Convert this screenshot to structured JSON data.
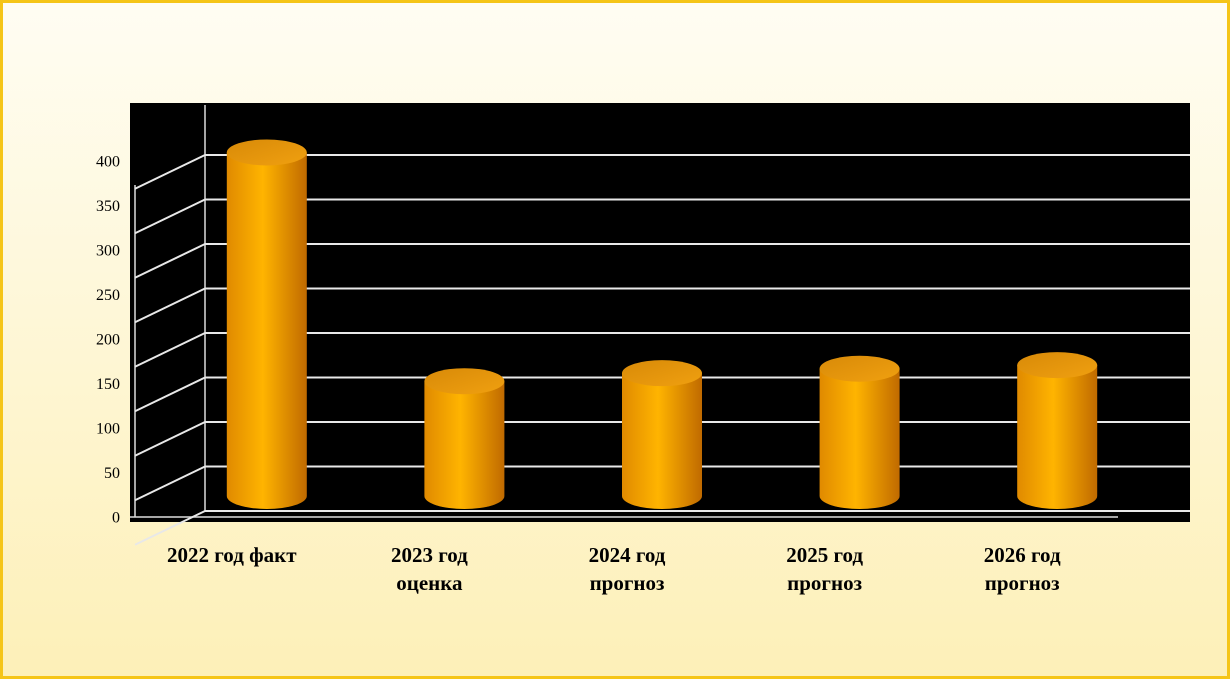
{
  "chart_data": {
    "type": "bar3d",
    "categories": [
      "2022 год факт",
      "2023 год оценка",
      "2024 год прогноз",
      "2025 год прогноз",
      "2026 год прогноз"
    ],
    "values": [
      386,
      129,
      138,
      143,
      147
    ],
    "color": "#ffa500",
    "ylim": [
      0,
      400
    ],
    "yticks": [
      0,
      50,
      100,
      150,
      200,
      250,
      300,
      350,
      400
    ],
    "grid": true
  }
}
